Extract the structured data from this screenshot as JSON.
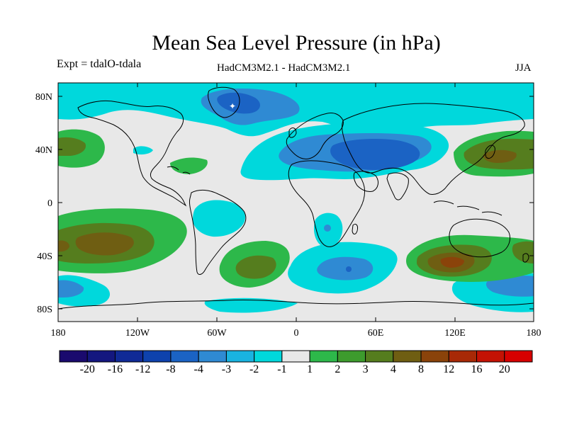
{
  "title": "Mean Sea Level Pressure (in hPa)",
  "experiment_label": "Expt = tdalO-tdala",
  "model_label": "HadCM3M2.1 - HadCM3M2.1",
  "season_label": "JJA",
  "axes": {
    "y_ticks": [
      "80N",
      "40N",
      "0",
      "40S",
      "80S"
    ],
    "x_ticks": [
      "180",
      "120W",
      "60W",
      "0",
      "60E",
      "120E",
      "180"
    ]
  },
  "colorbar": {
    "labels": [
      "-20",
      "-16",
      "-12",
      "-8",
      "-4",
      "-3",
      "-2",
      "-1",
      "1",
      "2",
      "3",
      "4",
      "8",
      "12",
      "16",
      "20"
    ],
    "colors": [
      "#1a0a6e",
      "#14177f",
      "#102a96",
      "#0e42ad",
      "#1b63c4",
      "#2f8ad3",
      "#19b3e0",
      "#00d8dc",
      "#e8e8e8",
      "#2db84a",
      "#3d9b2d",
      "#557d1e",
      "#6f5e12",
      "#8a430a",
      "#a82906",
      "#c41204",
      "#d70000"
    ]
  },
  "colors": {
    "land_outline": "#000000",
    "background": "#e8e8e8"
  }
}
